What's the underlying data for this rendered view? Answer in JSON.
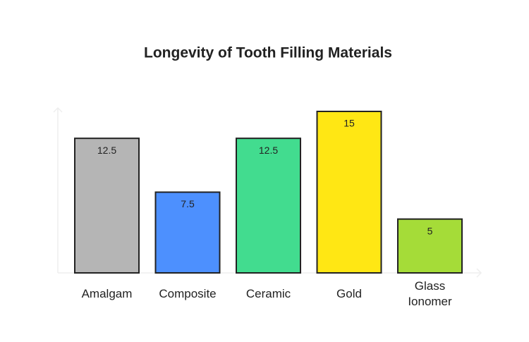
{
  "chart_data": {
    "type": "bar",
    "title": "Longevity of Tooth Filling Materials",
    "categories": [
      "Amalgam",
      "Composite",
      "Ceramic",
      "Gold",
      "Glass Ionomer"
    ],
    "values": [
      12.5,
      7.5,
      12.5,
      15,
      5
    ],
    "colors": [
      "#b5b5b5",
      "#4d90fe",
      "#42dc8f",
      "#ffe714",
      "#a5dc38"
    ],
    "ylim": [
      0,
      15
    ]
  }
}
